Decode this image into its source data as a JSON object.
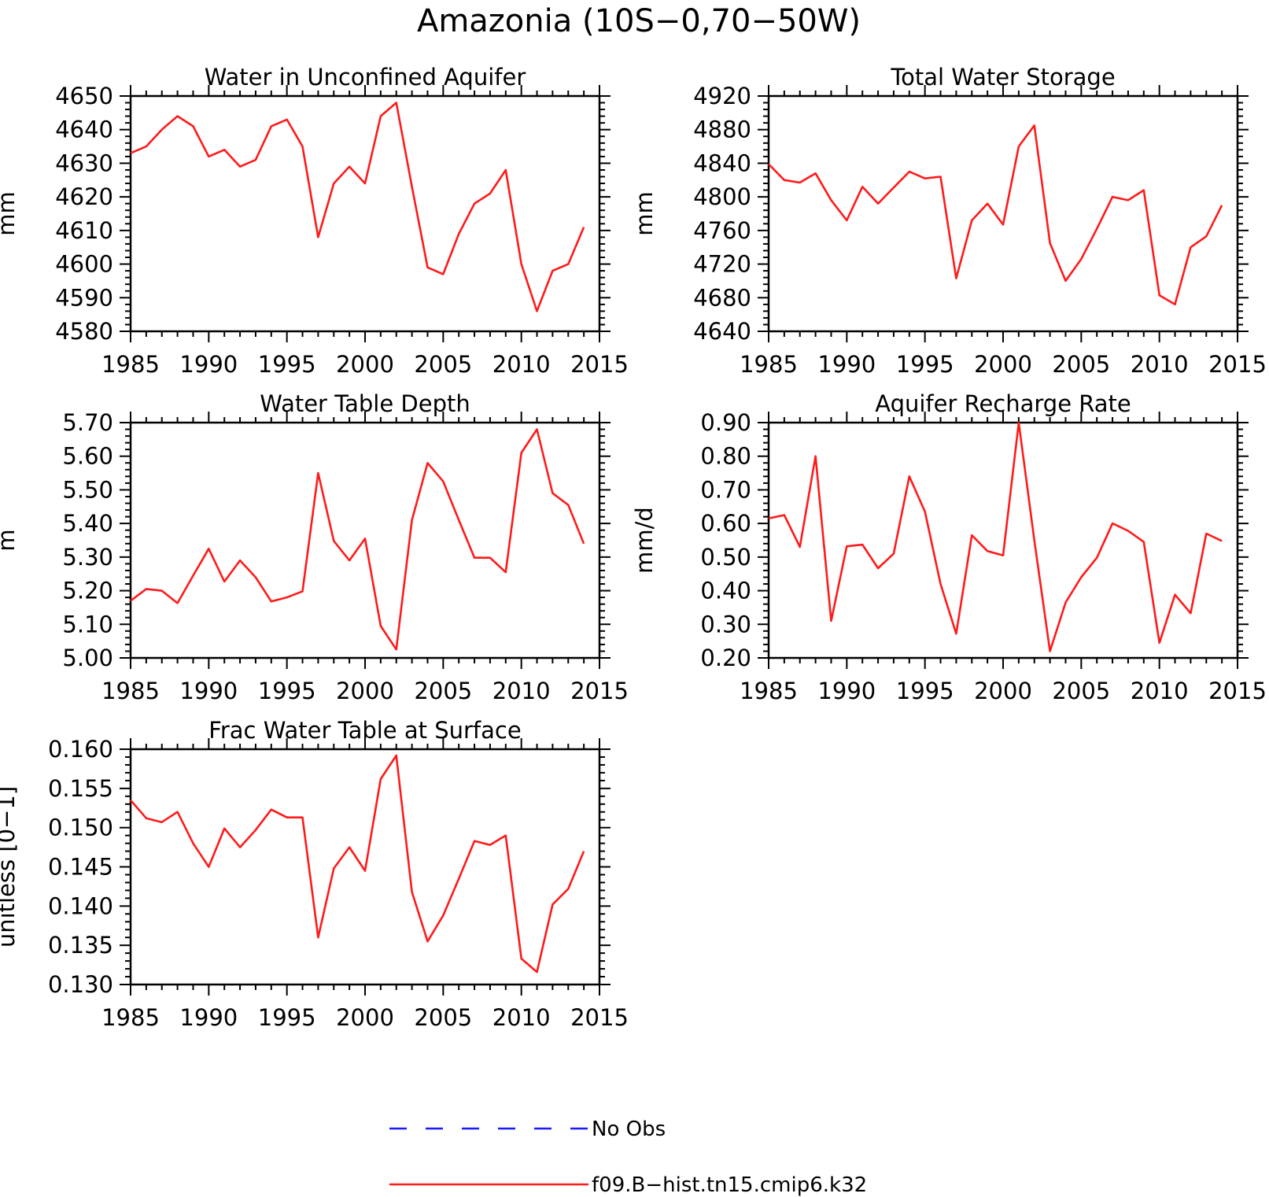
{
  "figure": {
    "title": "Amazonia (10S−0,70−50W)",
    "series_color": "#ff1a1a",
    "obs_color": "#1a1aff"
  },
  "legend": {
    "items": [
      {
        "label": "No Obs",
        "style": "dashed",
        "color": "#1a1aff"
      },
      {
        "label": "f09.B−hist.tn15.cmip6.k32",
        "style": "solid",
        "color": "#ff1a1a"
      }
    ]
  },
  "chart_data": [
    {
      "type": "line",
      "title": "Water in Unconfined Aquifer",
      "ylabel": "mm",
      "xlim": [
        1985,
        2015
      ],
      "ylim": [
        4580,
        4650
      ],
      "xticks": [
        1985,
        1990,
        1995,
        2000,
        2005,
        2010,
        2015
      ],
      "yticks": [
        "4580",
        "4590",
        "4600",
        "4610",
        "4620",
        "4630",
        "4640",
        "4650"
      ],
      "x": [
        1985,
        1986,
        1987,
        1988,
        1989,
        1990,
        1991,
        1992,
        1993,
        1994,
        1995,
        1996,
        1997,
        1998,
        1999,
        2000,
        2001,
        2002,
        2003,
        2004,
        2005,
        2006,
        2007,
        2008,
        2009,
        2010,
        2011,
        2012,
        2013,
        2014
      ],
      "series": [
        {
          "name": "f09.B−hist.tn15.cmip6.k32",
          "values": [
            4633,
            4635,
            4640,
            4644,
            4641,
            4632,
            4634,
            4629,
            4631,
            4641,
            4643,
            4635,
            4608,
            4624,
            4629,
            4624,
            4644,
            4648,
            4623,
            4599,
            4597,
            4609,
            4618,
            4621,
            4628,
            4600,
            4586,
            4598,
            4600,
            4611
          ]
        }
      ]
    },
    {
      "type": "line",
      "title": "Total Water Storage",
      "ylabel": "mm",
      "xlim": [
        1985,
        2015
      ],
      "ylim": [
        4640,
        4920
      ],
      "xticks": [
        1985,
        1990,
        1995,
        2000,
        2005,
        2010,
        2015
      ],
      "yticks": [
        "4640",
        "4680",
        "4720",
        "4760",
        "4800",
        "4840",
        "4880",
        "4920"
      ],
      "x": [
        1985,
        1986,
        1987,
        1988,
        1989,
        1990,
        1991,
        1992,
        1993,
        1994,
        1995,
        1996,
        1997,
        1998,
        1999,
        2000,
        2001,
        2002,
        2003,
        2004,
        2005,
        2006,
        2007,
        2008,
        2009,
        2010,
        2011,
        2012,
        2013,
        2014
      ],
      "series": [
        {
          "name": "f09.B−hist.tn15.cmip6.k32",
          "values": [
            4839,
            4820,
            4817,
            4828,
            4796,
            4772,
            4812,
            4792,
            4811,
            4830,
            4822,
            4824,
            4703,
            4772,
            4792,
            4767,
            4860,
            4885,
            4745,
            4700,
            4726,
            4762,
            4800,
            4796,
            4808,
            4683,
            4672,
            4740,
            4753,
            4790
          ]
        }
      ]
    },
    {
      "type": "line",
      "title": "Water Table Depth",
      "ylabel": "m",
      "xlim": [
        1985,
        2015
      ],
      "ylim": [
        5.0,
        5.7
      ],
      "xticks": [
        1985,
        1990,
        1995,
        2000,
        2005,
        2010,
        2015
      ],
      "yticks": [
        "5.00",
        "5.10",
        "5.20",
        "5.30",
        "5.40",
        "5.50",
        "5.60",
        "5.70"
      ],
      "x": [
        1985,
        1986,
        1987,
        1988,
        1989,
        1990,
        1991,
        1992,
        1993,
        1994,
        1995,
        1996,
        1997,
        1998,
        1999,
        2000,
        2001,
        2002,
        2003,
        2004,
        2005,
        2006,
        2007,
        2008,
        2009,
        2010,
        2011,
        2012,
        2013,
        2014
      ],
      "series": [
        {
          "name": "f09.B−hist.tn15.cmip6.k32",
          "values": [
            5.17,
            5.205,
            5.2,
            5.163,
            5.245,
            5.325,
            5.227,
            5.29,
            5.24,
            5.168,
            5.18,
            5.198,
            5.55,
            5.348,
            5.29,
            5.355,
            5.095,
            5.025,
            5.41,
            5.58,
            5.525,
            5.41,
            5.298,
            5.298,
            5.255,
            5.61,
            5.68,
            5.49,
            5.455,
            5.34
          ]
        }
      ]
    },
    {
      "type": "line",
      "title": "Aquifer Recharge Rate",
      "ylabel": "mm/d",
      "xlim": [
        1985,
        2015
      ],
      "ylim": [
        0.2,
        0.9
      ],
      "xticks": [
        1985,
        1990,
        1995,
        2000,
        2005,
        2010,
        2015
      ],
      "yticks": [
        "0.20",
        "0.30",
        "0.40",
        "0.50",
        "0.60",
        "0.70",
        "0.80",
        "0.90"
      ],
      "x": [
        1985,
        1986,
        1987,
        1988,
        1989,
        1990,
        1991,
        1992,
        1993,
        1994,
        1995,
        1996,
        1997,
        1998,
        1999,
        2000,
        2001,
        2002,
        2003,
        2004,
        2005,
        2006,
        2007,
        2008,
        2009,
        2010,
        2011,
        2012,
        2013,
        2014
      ],
      "series": [
        {
          "name": "f09.B−hist.tn15.cmip6.k32",
          "values": [
            0.615,
            0.625,
            0.53,
            0.8,
            0.31,
            0.532,
            0.537,
            0.467,
            0.51,
            0.74,
            0.635,
            0.42,
            0.272,
            0.565,
            0.518,
            0.505,
            0.9,
            0.55,
            0.22,
            0.365,
            0.44,
            0.498,
            0.6,
            0.578,
            0.545,
            0.245,
            0.388,
            0.333,
            0.57,
            0.548
          ]
        }
      ]
    },
    {
      "type": "line",
      "title": "Frac Water Table at Surface",
      "ylabel": "unitless [0−1]",
      "xlim": [
        1985,
        2015
      ],
      "ylim": [
        0.13,
        0.16
      ],
      "xticks": [
        1985,
        1990,
        1995,
        2000,
        2005,
        2010,
        2015
      ],
      "yticks": [
        "0.130",
        "0.135",
        "0.140",
        "0.145",
        "0.150",
        "0.155",
        "0.160"
      ],
      "x": [
        1985,
        1986,
        1987,
        1988,
        1989,
        1990,
        1991,
        1992,
        1993,
        1994,
        1995,
        1996,
        1997,
        1998,
        1999,
        2000,
        2001,
        2002,
        2003,
        2004,
        2005,
        2006,
        2007,
        2008,
        2009,
        2010,
        2011,
        2012,
        2013,
        2014
      ],
      "series": [
        {
          "name": "f09.B−hist.tn15.cmip6.k32",
          "values": [
            0.1535,
            0.1512,
            0.1507,
            0.152,
            0.148,
            0.145,
            0.1499,
            0.1475,
            0.1497,
            0.1523,
            0.1513,
            0.1513,
            0.136,
            0.1448,
            0.1475,
            0.1445,
            0.1562,
            0.1592,
            0.1418,
            0.1355,
            0.1388,
            0.1435,
            0.1483,
            0.1478,
            0.149,
            0.1333,
            0.1316,
            0.1402,
            0.1422,
            0.147
          ]
        }
      ]
    }
  ]
}
